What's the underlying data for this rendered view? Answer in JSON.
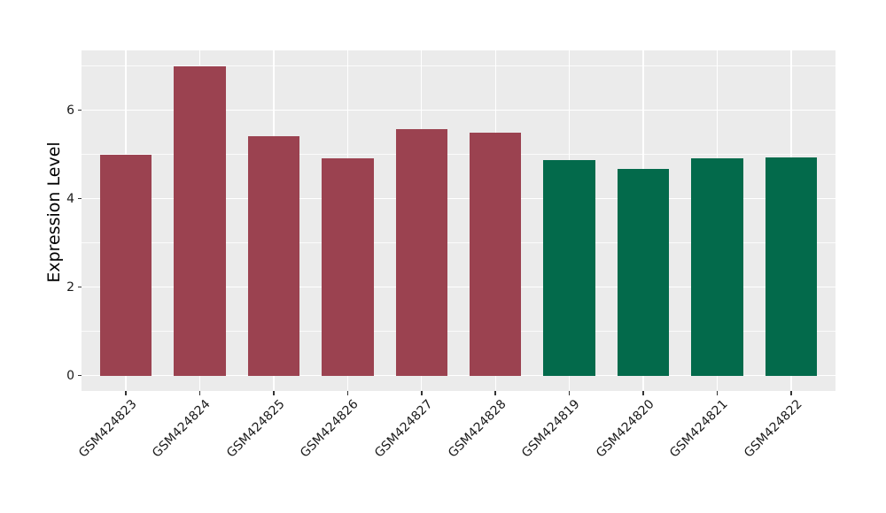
{
  "figure": {
    "background": "#FFFFFF"
  },
  "chart_data": {
    "type": "bar",
    "title": "",
    "xlabel": "",
    "ylabel": "Expression Level",
    "categories": [
      "GSM424823",
      "GSM424824",
      "GSM424825",
      "GSM424826",
      "GSM424827",
      "GSM424828",
      "GSM424819",
      "GSM424820",
      "GSM424821",
      "GSM424822"
    ],
    "values": [
      5.0,
      7.0,
      5.42,
      4.92,
      5.58,
      5.5,
      4.87,
      4.67,
      4.91,
      4.93
    ],
    "bar_colors": [
      "#9B4250",
      "#9B4250",
      "#9B4250",
      "#9B4250",
      "#9B4250",
      "#9B4250",
      "#036A4B",
      "#036A4B",
      "#036A4B",
      "#036A4B"
    ],
    "group_colors": {
      "left_group": "#9B4250",
      "right_group": "#036A4B"
    },
    "yticks": [
      0,
      2,
      4,
      6
    ],
    "minor_yticks": [
      1,
      3,
      5,
      7
    ],
    "ylim": [
      -0.35,
      7.35
    ],
    "bar_width_fraction": 0.7,
    "panel_background": "#EBEBEB",
    "grid_color": "#FFFFFF",
    "tick_color": "#333333",
    "label_color": "#1A1A1A",
    "x_tick_rotation_deg": 45,
    "legend_position": "none",
    "grid": "on"
  }
}
